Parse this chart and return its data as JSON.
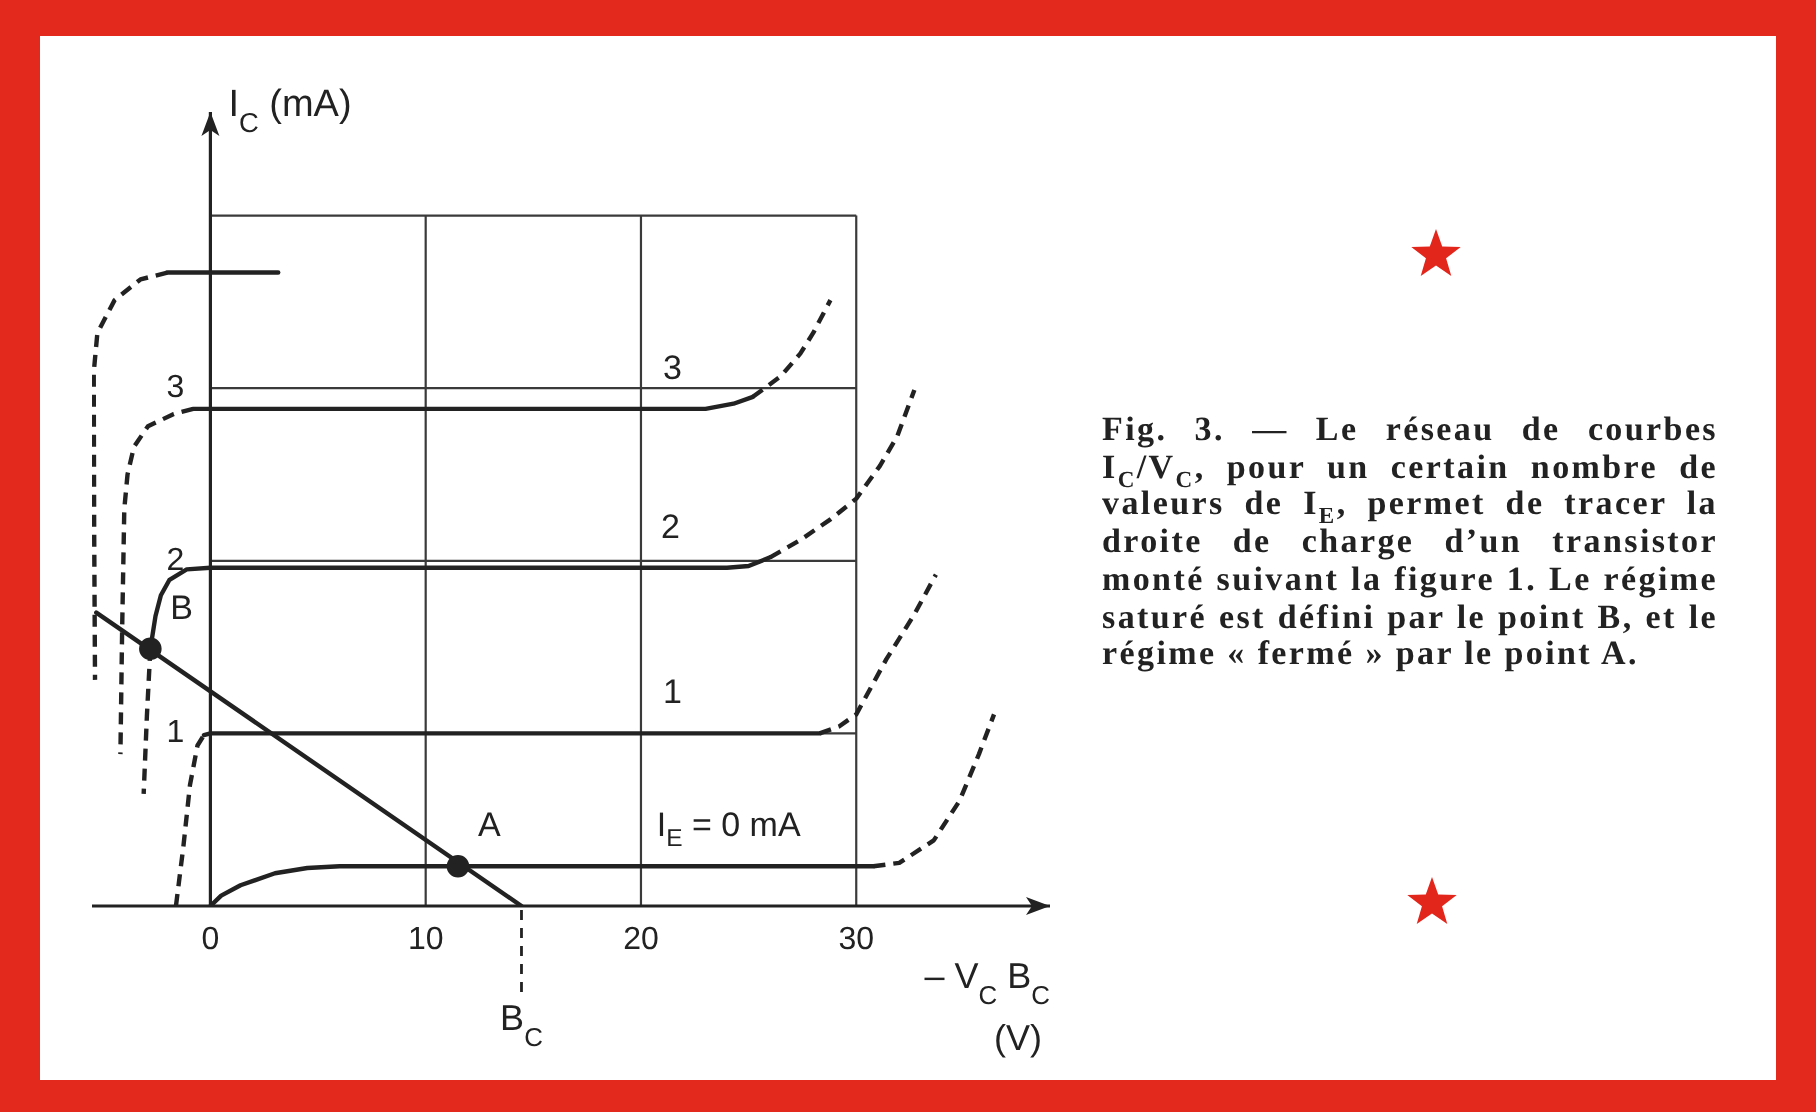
{
  "chart_data": {
    "type": "line",
    "xlabel": "– V$_{C}$ B$_{C}$ (V)",
    "ylabel": "I$_{C}$ (mA)",
    "xlim": [
      -5.5,
      39
    ],
    "ylim": [
      0,
      4.6
    ],
    "xticks": [
      0,
      10,
      20,
      30
    ],
    "yticks": [
      1,
      2,
      3,
      {
        "value": 4,
        "label": null
      }
    ],
    "grid": "x",
    "ref_lines": [
      {
        "axis": "y",
        "value": 1
      },
      {
        "axis": "y",
        "value": 2
      },
      {
        "axis": "y",
        "value": 3
      },
      {
        "axis": "y",
        "value": 4
      }
    ],
    "series": [
      {
        "color": "#222222",
        "x": [
          0,
          0.5,
          1.4,
          3.0,
          4.5,
          6,
          30.8
        ],
        "values": [
          0,
          0.06,
          0.12,
          0.19,
          0.22,
          0.23,
          0.23
        ]
      },
      {
        "color": "#222222",
        "line_style": "dashed",
        "x": [
          30.8,
          32.0,
          33.6,
          34.8,
          35.7,
          36.4
        ],
        "values": [
          0.23,
          0.25,
          0.38,
          0.61,
          0.88,
          1.11
        ]
      },
      {
        "color": "#222222",
        "line_style": "dashed",
        "x": [
          -1.6,
          -1.25,
          -0.95,
          -0.6,
          -0.3
        ],
        "values": [
          0,
          0.35,
          0.7,
          0.93,
          0.99
        ]
      },
      {
        "color": "#222222",
        "x": [
          -0.3,
          0,
          28.3
        ],
        "values": [
          0.99,
          1.0,
          1.0
        ]
      },
      {
        "color": "#222222",
        "line_style": "dashed",
        "x": [
          28.3,
          29.2,
          30.0,
          31.4,
          32.7,
          33.7
        ],
        "values": [
          1.0,
          1.04,
          1.11,
          1.43,
          1.69,
          1.92
        ]
      },
      {
        "color": "#222222",
        "line_style": "dashed",
        "x": [
          -2.79,
          -2.95,
          -3.1
        ],
        "values": [
          1.49,
          1.1,
          0.65
        ]
      },
      {
        "color": "#222222",
        "x": [
          -2.79,
          -2.55,
          -2.3,
          -1.9,
          -1.1,
          0,
          24.0,
          25.0,
          26.0
        ],
        "values": [
          1.49,
          1.68,
          1.8,
          1.89,
          1.95,
          1.96,
          1.96,
          1.97,
          2.02
        ]
      },
      {
        "color": "#222222",
        "line_style": "dashed",
        "x": [
          26.0,
          27.4,
          28.8,
          30.0,
          31.1,
          31.9,
          32.7
        ],
        "values": [
          2.02,
          2.12,
          2.24,
          2.36,
          2.55,
          2.72,
          2.99
        ]
      },
      {
        "color": "#222222",
        "line_style": "dashed",
        "x": [
          -0.8,
          -1.7,
          -2.9,
          -3.55,
          -3.85,
          -4.0,
          -4.1,
          -4.18
        ],
        "values": [
          2.88,
          2.85,
          2.78,
          2.66,
          2.5,
          2.3,
          1.6,
          0.88
        ]
      },
      {
        "color": "#222222",
        "x": [
          -0.8,
          23.0,
          24.3,
          25.2
        ],
        "values": [
          2.88,
          2.88,
          2.91,
          2.95
        ]
      },
      {
        "color": "#222222",
        "line_style": "dashed",
        "x": [
          25.2,
          26.5,
          27.4,
          28.0,
          28.8
        ],
        "values": [
          2.95,
          3.07,
          3.2,
          3.32,
          3.51
        ]
      },
      {
        "color": "#222222",
        "line_style": "dashed",
        "x": [
          -2.0,
          -3.25,
          -4.45,
          -5.25,
          -5.42,
          -5.4,
          -5.36
        ],
        "values": [
          3.67,
          3.63,
          3.51,
          3.32,
          3.09,
          2.2,
          1.31
        ]
      },
      {
        "color": "#222222",
        "x": [
          -2.0,
          3.15
        ],
        "values": [
          3.67,
          3.67
        ]
      },
      {
        "color": "#222222",
        "x": [
          -5.3,
          14.45
        ],
        "values": [
          1.7,
          0
        ]
      },
      {
        "type": "scatter",
        "marker": "circle",
        "color": "#222222",
        "x": [
          11.5,
          -2.79
        ],
        "values": [
          0.23,
          1.49
        ]
      }
    ],
    "annotations": [
      {
        "text": "3",
        "x": 20.1,
        "y": 2.88
      },
      {
        "text": "2",
        "x": 20.0,
        "y": 1.96
      },
      {
        "text": "1",
        "x": 20.1,
        "y": 1.0
      },
      {
        "text": "I$_{E}$ = 0 mA",
        "x": 19.8,
        "y": 0.23
      },
      {
        "text": "A",
        "x": 11.5,
        "y": 0.23
      },
      {
        "text": "B",
        "x": -2.79,
        "y": 1.49
      },
      {
        "text": "B$_{C}$",
        "x": 14.45,
        "y": 0
      },
      "Fig. 3. — Le réseau de courbes I$_{C}$/V$_{C}$, pour un certain nombre de valeurs de I$_{E}$, permet de tracer la droite de charge d’un transistor monté suivant la figure 1. Le régime saturé est défini par le point B, et le régime « fermé » par le point A."
    ]
  }
}
